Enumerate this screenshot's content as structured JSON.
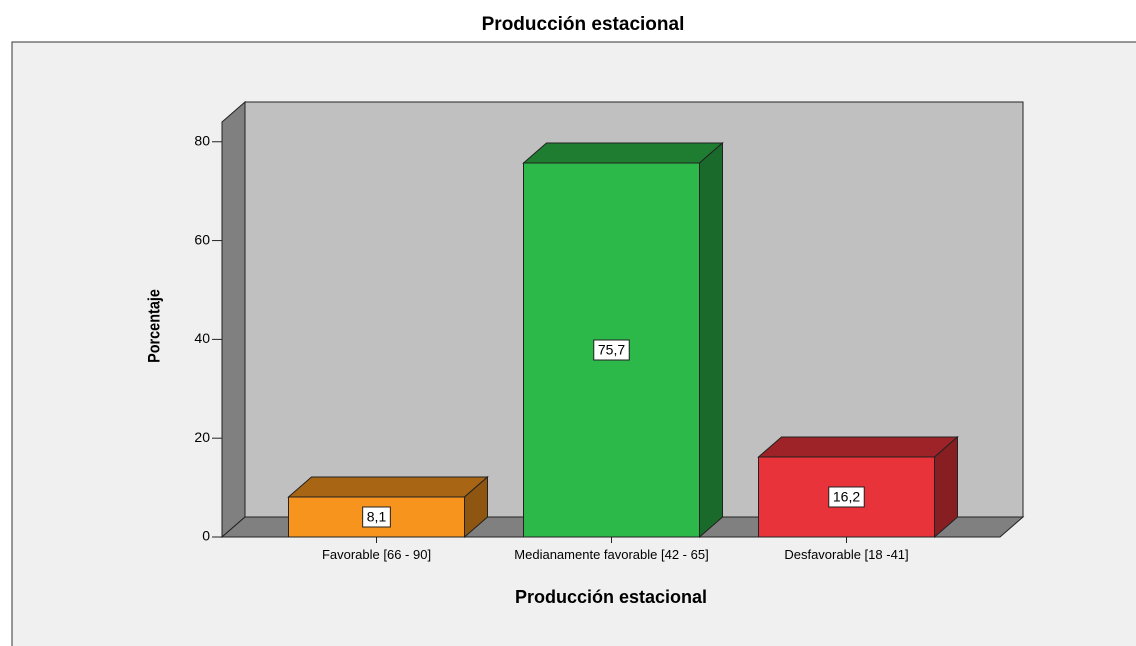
{
  "chart_data": {
    "type": "bar3d",
    "title": "Producción estacional",
    "x_label": "Producción estacional",
    "y_label": "Porcentaje",
    "categories": [
      "Favorable [66 - 90]",
      "Medianamente favorable [42 - 65]",
      "Desfavorable [18 -41]"
    ],
    "values": [
      8.1,
      75.7,
      16.2
    ],
    "value_labels": [
      "8,1",
      "75,7",
      "16,2"
    ],
    "colors": [
      "#f7941d",
      "#2db84a",
      "#e8333b"
    ],
    "ylim": [
      0,
      84
    ],
    "yticks": [
      0,
      20,
      40,
      60,
      80
    ]
  }
}
